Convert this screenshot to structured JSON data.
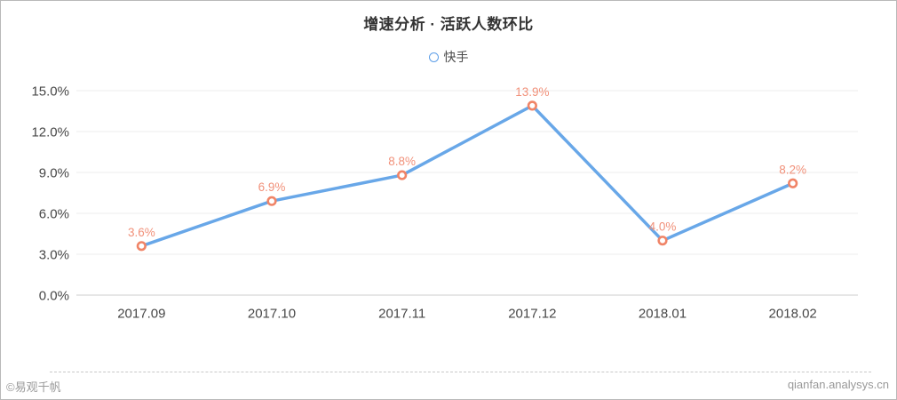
{
  "page": {
    "title": "增速分析 · 活跃人数环比",
    "footer_left": "©易观千帆",
    "footer_right": "qianfan.analysys.cn"
  },
  "legend": {
    "items": [
      {
        "label": "快手",
        "marker_color": "#5d9ee8"
      }
    ]
  },
  "chart_data": {
    "type": "line",
    "title": "增速分析 · 活跃人数环比",
    "categories": [
      "2017.09",
      "2017.10",
      "2017.11",
      "2017.12",
      "2018.01",
      "2018.02"
    ],
    "series": [
      {
        "name": "快手",
        "values": [
          3.6,
          6.9,
          8.8,
          13.9,
          4.0,
          8.2
        ],
        "labels": [
          "3.6%",
          "6.9%",
          "8.8%",
          "13.9%",
          "4.0%",
          "8.2%"
        ]
      }
    ],
    "xlabel": "",
    "ylabel": "",
    "ylim": [
      0,
      15
    ],
    "yticks": [
      0,
      3,
      6,
      9,
      12,
      15
    ],
    "ytick_labels": [
      "0.0%",
      "3.0%",
      "6.0%",
      "9.0%",
      "12.0%",
      "15.0%"
    ],
    "grid": true,
    "legend_position": "top",
    "colors": {
      "line": "#68a7e8",
      "marker_stroke": "#f08467",
      "marker_fill": "#ffffff",
      "data_label": "#f1917a",
      "grid": "#ededed",
      "axis_line": "#cccccc",
      "tick_text": "#474747"
    }
  }
}
